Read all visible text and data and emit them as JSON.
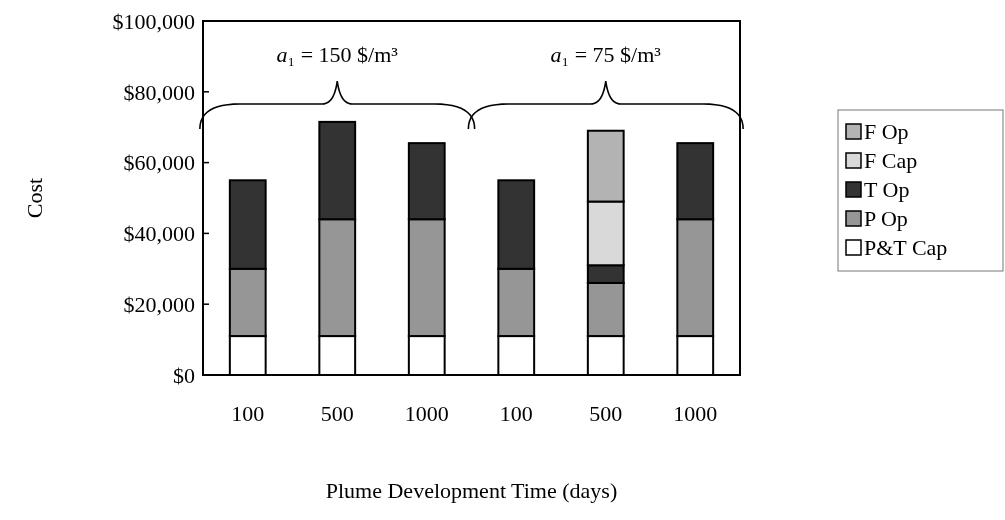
{
  "chart_data": {
    "type": "bar",
    "stacked": true,
    "xlabel": "Plume Development Time (days)",
    "ylabel": "Cost",
    "categories": [
      "100",
      "500",
      "1000",
      "100",
      "500",
      "1000"
    ],
    "series": [
      {
        "name": "P&T Cap",
        "color": "#ffffff",
        "values": [
          11000,
          11000,
          11000,
          11000,
          11000,
          11000
        ]
      },
      {
        "name": "P Op",
        "color": "#969696",
        "values": [
          19000,
          33000,
          33000,
          19000,
          15000,
          33000
        ]
      },
      {
        "name": "T Op",
        "color": "#333333",
        "values": [
          25000,
          27500,
          21500,
          25000,
          5000,
          21500
        ]
      },
      {
        "name": "F Cap",
        "color": "#d9d9d9",
        "values": [
          null,
          null,
          null,
          null,
          18000,
          null
        ]
      },
      {
        "name": "F Op",
        "color": "#b3b3b3",
        "values": [
          null,
          null,
          null,
          null,
          20000,
          null
        ]
      }
    ],
    "ylim": [
      0,
      100000
    ],
    "yticks": [
      {
        "value": 0,
        "label": "$0"
      },
      {
        "value": 20000,
        "label": "$20,000"
      },
      {
        "value": 40000,
        "label": "$40,000"
      },
      {
        "value": 60000,
        "label": "$60,000"
      },
      {
        "value": 80000,
        "label": "$80,000"
      },
      {
        "value": 100000,
        "label": "$100,000"
      }
    ],
    "annotations": [
      "a₁ = 150 $/m³",
      "a₁ = 75 $/m³"
    ],
    "legend": "right",
    "grid": false
  }
}
